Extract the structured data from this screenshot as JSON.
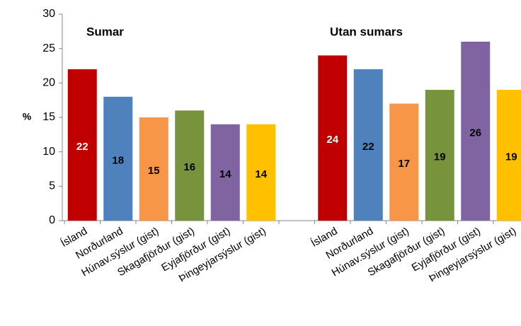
{
  "chart_data": {
    "type": "bar",
    "y_label": "%",
    "annotations": [
      "Sumar",
      "Utan sumars"
    ],
    "categories": [
      "Ísland",
      "Norðurland",
      "Húnav.sýslur (gist)",
      "Skagafjörður (gist)",
      "Eyjafjörður (gist)",
      "Þingeyjarsýslur (gist)",
      null,
      "Ísland",
      "Norðurland",
      "Húnav.sýslur (gist)",
      "Skagafjörður (gist)",
      "Eyjafjörður (gist)",
      "Þingeyjarsýslur (gist)"
    ],
    "values": [
      22,
      18,
      15,
      16,
      14,
      14,
      null,
      24,
      22,
      17,
      19,
      26,
      19
    ],
    "colors": [
      "#c00000",
      "#4f81bd",
      "#f79646",
      "#77933c",
      "#8064a2",
      "#ffc000",
      null,
      "#c00000",
      "#4f81bd",
      "#f79646",
      "#77933c",
      "#8064a2",
      "#ffc000"
    ],
    "ylim": [
      0,
      30
    ],
    "yticks": [
      0,
      5,
      10,
      15,
      20,
      25,
      30
    ],
    "grid": false
  }
}
